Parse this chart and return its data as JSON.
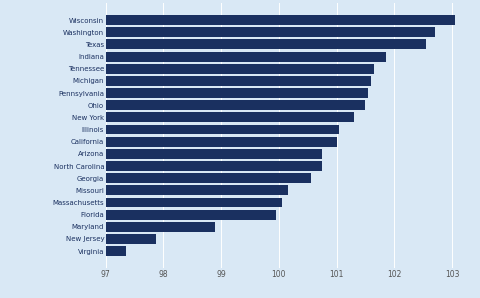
{
  "states": [
    "Virginia",
    "New Jersey",
    "Maryland",
    "Florida",
    "Massachusetts",
    "Missouri",
    "Georgia",
    "North Carolina",
    "Arizona",
    "California",
    "Illinois",
    "New York",
    "Ohio",
    "Pennsylvania",
    "Michigan",
    "Tennessee",
    "Indiana",
    "Texas",
    "Washington",
    "Wisconsin"
  ],
  "values": [
    97.35,
    97.88,
    98.9,
    99.95,
    100.05,
    100.15,
    100.55,
    100.75,
    100.75,
    101.0,
    101.05,
    101.3,
    101.5,
    101.55,
    101.6,
    101.65,
    101.85,
    102.55,
    102.7,
    103.05
  ],
  "bar_color": "#1a3060",
  "bg_color": "#d9e8f5",
  "xlim": [
    97,
    103.4
  ],
  "xticks": [
    97,
    98,
    99,
    100,
    101,
    102,
    103
  ],
  "bar_height": 0.82
}
